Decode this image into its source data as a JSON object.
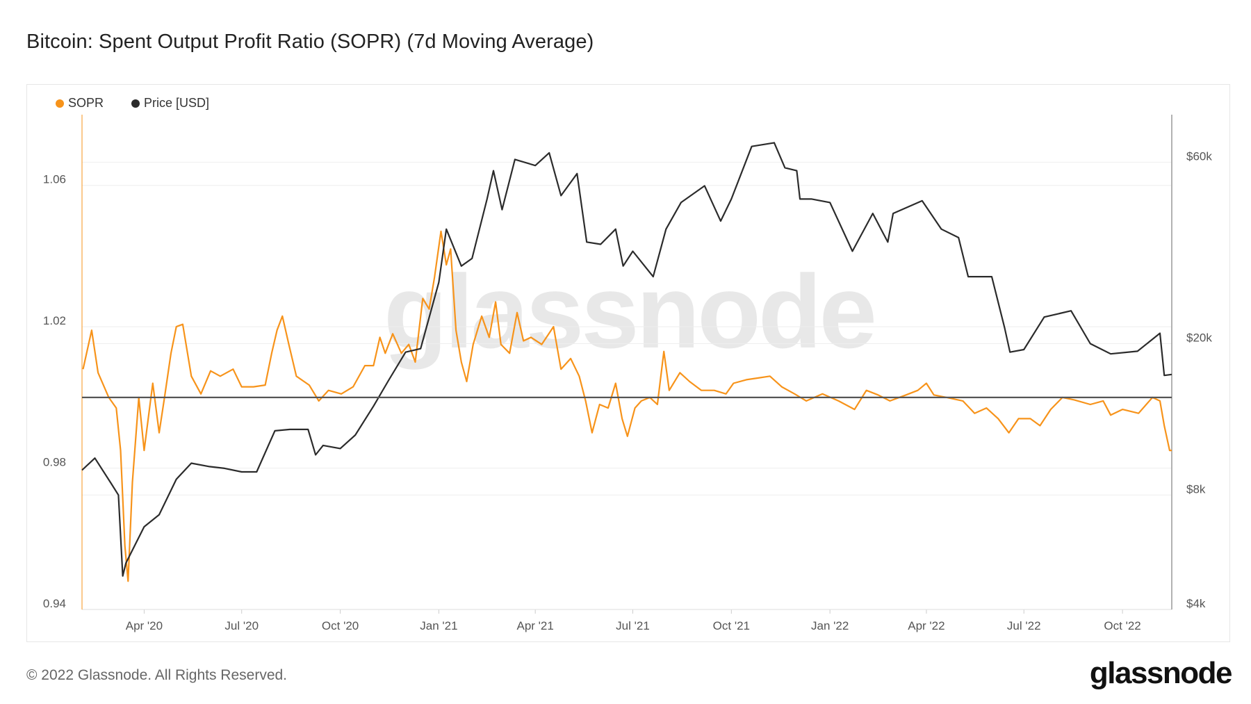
{
  "title": "Bitcoin: Spent Output Profit Ratio (SOPR) (7d Moving Average)",
  "footer": "© 2022 Glassnode. All Rights Reserved.",
  "logo": "glassnode",
  "watermark": "glassnode",
  "chart_data": {
    "type": "line",
    "title": "Bitcoin: Spent Output Profit Ratio (SOPR) (7d Moving Average)",
    "legend_position": "top-left",
    "grid": true,
    "xlim": [
      "2020-02-03",
      "2022-11-16"
    ],
    "x_ticks": [
      {
        "date": "2020-04-01",
        "label": "Apr '20"
      },
      {
        "date": "2020-07-01",
        "label": "Jul '20"
      },
      {
        "date": "2020-10-01",
        "label": "Oct '20"
      },
      {
        "date": "2021-01-01",
        "label": "Jan '21"
      },
      {
        "date": "2021-04-01",
        "label": "Apr '21"
      },
      {
        "date": "2021-07-01",
        "label": "Jul '21"
      },
      {
        "date": "2021-10-01",
        "label": "Oct '21"
      },
      {
        "date": "2022-01-01",
        "label": "Jan '22"
      },
      {
        "date": "2022-04-01",
        "label": "Apr '22"
      },
      {
        "date": "2022-07-01",
        "label": "Jul '22"
      },
      {
        "date": "2022-10-01",
        "label": "Oct '22"
      }
    ],
    "y_left": {
      "scale": "linear",
      "range": [
        0.94,
        1.08
      ],
      "ticks": [
        {
          "v": 0.94,
          "label": "0.94"
        },
        {
          "v": 0.98,
          "label": "0.98"
        },
        {
          "v": 1.02,
          "label": "1.02"
        },
        {
          "v": 1.06,
          "label": "1.06"
        }
      ],
      "reference_line": 1.0
    },
    "y_right": {
      "scale": "log",
      "range": [
        4000,
        80000
      ],
      "ticks": [
        {
          "v": 4000,
          "label": "$4k"
        },
        {
          "v": 8000,
          "label": "$8k"
        },
        {
          "v": 20000,
          "label": "$20k"
        },
        {
          "v": 60000,
          "label": "$60k"
        }
      ]
    },
    "series": [
      {
        "name": "SOPR",
        "axis": "left",
        "color": "#f7931a",
        "points": [
          [
            "2020-02-04",
            1.008
          ],
          [
            "2020-02-12",
            1.019
          ],
          [
            "2020-02-18",
            1.007
          ],
          [
            "2020-02-28",
            1.0
          ],
          [
            "2020-03-06",
            0.997
          ],
          [
            "2020-03-10",
            0.985
          ],
          [
            "2020-03-14",
            0.958
          ],
          [
            "2020-03-17",
            0.948
          ],
          [
            "2020-03-21",
            0.976
          ],
          [
            "2020-03-27",
            1.0
          ],
          [
            "2020-04-01",
            0.985
          ],
          [
            "2020-04-09",
            1.004
          ],
          [
            "2020-04-15",
            0.99
          ],
          [
            "2020-04-20",
            1.0
          ],
          [
            "2020-04-26",
            1.0125
          ],
          [
            "2020-05-01",
            1.02
          ],
          [
            "2020-05-07",
            1.0207
          ],
          [
            "2020-05-15",
            1.006
          ],
          [
            "2020-05-24",
            1.001
          ],
          [
            "2020-06-02",
            1.0075
          ],
          [
            "2020-06-11",
            1.006
          ],
          [
            "2020-06-23",
            1.008
          ],
          [
            "2020-07-01",
            1.003
          ],
          [
            "2020-07-12",
            1.003
          ],
          [
            "2020-07-23",
            1.0035
          ],
          [
            "2020-07-29",
            1.0125
          ],
          [
            "2020-08-03",
            1.019
          ],
          [
            "2020-08-08",
            1.023
          ],
          [
            "2020-08-14",
            1.015
          ],
          [
            "2020-08-21",
            1.006
          ],
          [
            "2020-09-02",
            1.0035
          ],
          [
            "2020-09-11",
            0.999
          ],
          [
            "2020-09-20",
            1.002
          ],
          [
            "2020-10-02",
            1.001
          ],
          [
            "2020-10-13",
            1.003
          ],
          [
            "2020-10-24",
            1.009
          ],
          [
            "2020-11-01",
            1.009
          ],
          [
            "2020-11-07",
            1.017
          ],
          [
            "2020-11-12",
            1.0125
          ],
          [
            "2020-11-19",
            1.018
          ],
          [
            "2020-11-27",
            1.0125
          ],
          [
            "2020-12-04",
            1.015
          ],
          [
            "2020-12-10",
            1.01
          ],
          [
            "2020-12-17",
            1.028
          ],
          [
            "2020-12-23",
            1.025
          ],
          [
            "2020-12-28",
            1.034
          ],
          [
            "2021-01-03",
            1.047
          ],
          [
            "2021-01-08",
            1.0375
          ],
          [
            "2021-01-12",
            1.042
          ],
          [
            "2021-01-17",
            1.019
          ],
          [
            "2021-01-22",
            1.01
          ],
          [
            "2021-01-27",
            1.0045
          ],
          [
            "2021-02-02",
            1.015
          ],
          [
            "2021-02-10",
            1.023
          ],
          [
            "2021-02-17",
            1.017
          ],
          [
            "2021-02-23",
            1.027
          ],
          [
            "2021-02-28",
            1.015
          ],
          [
            "2021-03-08",
            1.0125
          ],
          [
            "2021-03-15",
            1.024
          ],
          [
            "2021-03-21",
            1.016
          ],
          [
            "2021-03-28",
            1.017
          ],
          [
            "2021-04-07",
            1.015
          ],
          [
            "2021-04-18",
            1.02
          ],
          [
            "2021-04-25",
            1.008
          ],
          [
            "2021-05-04",
            1.011
          ],
          [
            "2021-05-12",
            1.006
          ],
          [
            "2021-05-18",
            0.999
          ],
          [
            "2021-05-24",
            0.99
          ],
          [
            "2021-05-31",
            0.998
          ],
          [
            "2021-06-08",
            0.997
          ],
          [
            "2021-06-15",
            1.004
          ],
          [
            "2021-06-21",
            0.994
          ],
          [
            "2021-06-26",
            0.989
          ],
          [
            "2021-07-03",
            0.997
          ],
          [
            "2021-07-09",
            0.999
          ],
          [
            "2021-07-17",
            1.0
          ],
          [
            "2021-07-24",
            0.998
          ],
          [
            "2021-07-30",
            1.013
          ],
          [
            "2021-08-04",
            1.002
          ],
          [
            "2021-08-14",
            1.007
          ],
          [
            "2021-08-23",
            1.0045
          ],
          [
            "2021-09-03",
            1.002
          ],
          [
            "2021-09-15",
            1.002
          ],
          [
            "2021-09-26",
            1.001
          ],
          [
            "2021-10-03",
            1.004
          ],
          [
            "2021-10-15",
            1.005
          ],
          [
            "2021-10-26",
            1.0055
          ],
          [
            "2021-11-06",
            1.006
          ],
          [
            "2021-11-17",
            1.003
          ],
          [
            "2021-11-29",
            1.001
          ],
          [
            "2021-12-10",
            0.999
          ],
          [
            "2021-12-25",
            1.001
          ],
          [
            "2022-01-09",
            0.999
          ],
          [
            "2022-01-24",
            0.9966
          ],
          [
            "2022-02-04",
            1.002
          ],
          [
            "2022-02-15",
            1.0007
          ],
          [
            "2022-02-26",
            0.999
          ],
          [
            "2022-03-13",
            1.0007
          ],
          [
            "2022-03-24",
            1.002
          ],
          [
            "2022-04-01",
            1.004
          ],
          [
            "2022-04-08",
            1.0007
          ],
          [
            "2022-04-20",
            1.0
          ],
          [
            "2022-05-05",
            0.999
          ],
          [
            "2022-05-16",
            0.9955
          ],
          [
            "2022-05-27",
            0.997
          ],
          [
            "2022-06-07",
            0.994
          ],
          [
            "2022-06-17",
            0.99
          ],
          [
            "2022-06-26",
            0.994
          ],
          [
            "2022-07-07",
            0.994
          ],
          [
            "2022-07-16",
            0.992
          ],
          [
            "2022-07-26",
            0.9966
          ],
          [
            "2022-08-06",
            1.0
          ],
          [
            "2022-08-17",
            0.9993
          ],
          [
            "2022-09-01",
            0.998
          ],
          [
            "2022-09-13",
            0.999
          ],
          [
            "2022-09-20",
            0.995
          ],
          [
            "2022-10-01",
            0.9966
          ],
          [
            "2022-10-16",
            0.9955
          ],
          [
            "2022-10-29",
            1.0
          ],
          [
            "2022-11-05",
            0.999
          ],
          [
            "2022-11-09",
            0.992
          ],
          [
            "2022-11-14",
            0.985
          ],
          [
            "2022-11-16",
            0.985
          ]
        ]
      },
      {
        "name": "Price [USD]",
        "axis": "right",
        "color": "#2b2b2b",
        "points": [
          [
            "2020-02-03",
            9300
          ],
          [
            "2020-02-15",
            10000
          ],
          [
            "2020-03-01",
            8600
          ],
          [
            "2020-03-08",
            8000
          ],
          [
            "2020-03-12",
            4900
          ],
          [
            "2020-03-15",
            5300
          ],
          [
            "2020-04-01",
            6600
          ],
          [
            "2020-04-15",
            7100
          ],
          [
            "2020-05-01",
            8800
          ],
          [
            "2020-05-15",
            9700
          ],
          [
            "2020-06-01",
            9500
          ],
          [
            "2020-06-15",
            9400
          ],
          [
            "2020-07-01",
            9200
          ],
          [
            "2020-07-15",
            9200
          ],
          [
            "2020-08-01",
            11800
          ],
          [
            "2020-08-15",
            11900
          ],
          [
            "2020-09-01",
            11900
          ],
          [
            "2020-09-08",
            10200
          ],
          [
            "2020-09-15",
            10800
          ],
          [
            "2020-10-01",
            10600
          ],
          [
            "2020-10-15",
            11500
          ],
          [
            "2020-11-01",
            13700
          ],
          [
            "2020-11-15",
            16000
          ],
          [
            "2020-12-01",
            19000
          ],
          [
            "2020-12-15",
            19400
          ],
          [
            "2021-01-01",
            29000
          ],
          [
            "2021-01-08",
            40000
          ],
          [
            "2021-01-22",
            32000
          ],
          [
            "2021-02-01",
            33500
          ],
          [
            "2021-02-15",
            48000
          ],
          [
            "2021-02-21",
            57000
          ],
          [
            "2021-03-01",
            45000
          ],
          [
            "2021-03-13",
            61000
          ],
          [
            "2021-04-01",
            58800
          ],
          [
            "2021-04-14",
            63500
          ],
          [
            "2021-04-25",
            49000
          ],
          [
            "2021-05-10",
            56000
          ],
          [
            "2021-05-19",
            37000
          ],
          [
            "2021-06-01",
            36500
          ],
          [
            "2021-06-15",
            40000
          ],
          [
            "2021-06-22",
            32000
          ],
          [
            "2021-07-01",
            35000
          ],
          [
            "2021-07-20",
            30000
          ],
          [
            "2021-08-01",
            40000
          ],
          [
            "2021-08-15",
            47000
          ],
          [
            "2021-09-06",
            52000
          ],
          [
            "2021-09-21",
            42000
          ],
          [
            "2021-10-01",
            48000
          ],
          [
            "2021-10-20",
            66000
          ],
          [
            "2021-11-10",
            67500
          ],
          [
            "2021-11-20",
            58000
          ],
          [
            "2021-12-01",
            57000
          ],
          [
            "2021-12-04",
            48000
          ],
          [
            "2021-12-15",
            48000
          ],
          [
            "2022-01-01",
            47000
          ],
          [
            "2022-01-22",
            35000
          ],
          [
            "2022-02-10",
            44000
          ],
          [
            "2022-02-24",
            37000
          ],
          [
            "2022-03-01",
            44000
          ],
          [
            "2022-03-28",
            47500
          ],
          [
            "2022-04-15",
            40000
          ],
          [
            "2022-05-01",
            38000
          ],
          [
            "2022-05-10",
            30000
          ],
          [
            "2022-06-01",
            30000
          ],
          [
            "2022-06-13",
            22000
          ],
          [
            "2022-06-18",
            19000
          ],
          [
            "2022-07-01",
            19300
          ],
          [
            "2022-07-20",
            23500
          ],
          [
            "2022-08-14",
            24400
          ],
          [
            "2022-09-01",
            20000
          ],
          [
            "2022-09-20",
            18800
          ],
          [
            "2022-10-15",
            19100
          ],
          [
            "2022-11-05",
            21300
          ],
          [
            "2022-11-09",
            16500
          ],
          [
            "2022-11-16",
            16600
          ]
        ]
      }
    ]
  }
}
